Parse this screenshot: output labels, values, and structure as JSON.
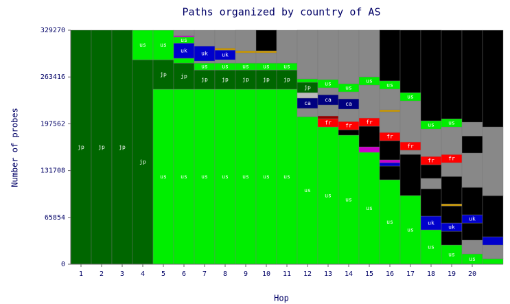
{
  "chart_data": {
    "type": "stacked-bar",
    "title": "Paths organized by country of AS",
    "y_label": "Number of probes",
    "x_label": "Hop",
    "ylim": [
      0,
      329270
    ],
    "yticks": [
      0,
      65854,
      131708,
      197562,
      263416,
      329270
    ],
    "categories": [
      "1",
      "2",
      "3",
      "4",
      "5",
      "6",
      "7",
      "8",
      "9",
      "10",
      "11",
      "12",
      "13",
      "14",
      "15",
      "16",
      "17",
      "18",
      "19",
      "20",
      null
    ],
    "stacks": [
      [
        {
          "value": 329270,
          "color": "#006600",
          "label": "jp"
        }
      ],
      [
        {
          "value": 329270,
          "color": "#006600",
          "label": "jp"
        }
      ],
      [
        {
          "value": 329270,
          "color": "#006600",
          "label": "jp"
        }
      ],
      [
        {
          "value": 287700,
          "color": "#006600",
          "label": "jp"
        },
        {
          "value": 41500,
          "color": "#00ee00",
          "label": "us"
        }
      ],
      [
        {
          "value": 246200,
          "color": "#00ee00",
          "label": "us"
        },
        {
          "value": 41500,
          "color": "#006600",
          "label": "jp"
        },
        {
          "value": 41500,
          "color": "#00ee00",
          "label": "us"
        }
      ],
      [
        {
          "value": 246200,
          "color": "#00ee00",
          "label": "us"
        },
        {
          "value": 36700,
          "color": "#006600",
          "label": "jp"
        },
        {
          "value": 6800,
          "color": "#00ee00"
        },
        {
          "value": 21200,
          "color": "#0000cc",
          "label": "uk"
        },
        {
          "value": 8700,
          "color": "#00ee00",
          "label": "us"
        },
        {
          "value": 1900,
          "color": "#cc00cc"
        },
        {
          "value": 7700,
          "color": "#888888"
        }
      ],
      [
        {
          "value": 246200,
          "color": "#00ee00",
          "label": "us"
        },
        {
          "value": 27000,
          "color": "#006600",
          "label": "jp"
        },
        {
          "value": 9700,
          "color": "#00ee00",
          "label": "us"
        },
        {
          "value": 2900,
          "color": "#888888"
        },
        {
          "value": 21200,
          "color": "#0000cc",
          "label": "uk"
        },
        {
          "value": 22200,
          "color": "#888888"
        }
      ],
      [
        {
          "value": 246200,
          "color": "#00ee00",
          "label": "us"
        },
        {
          "value": 27000,
          "color": "#006600",
          "label": "jp"
        },
        {
          "value": 9700,
          "color": "#00ee00",
          "label": "us"
        },
        {
          "value": 4800,
          "color": "#888888"
        },
        {
          "value": 13500,
          "color": "#0000cc",
          "label": "uk"
        },
        {
          "value": 2900,
          "color": "#cc9900"
        },
        {
          "value": 25100,
          "color": "#888888"
        }
      ],
      [
        {
          "value": 246200,
          "color": "#00ee00",
          "label": "us"
        },
        {
          "value": 27000,
          "color": "#006600",
          "label": "jp"
        },
        {
          "value": 9700,
          "color": "#00ee00",
          "label": "us"
        },
        {
          "value": 14500,
          "color": "#888888"
        },
        {
          "value": 2900,
          "color": "#cc9900"
        },
        {
          "value": 29000,
          "color": "#888888"
        }
      ],
      [
        {
          "value": 246200,
          "color": "#00ee00",
          "label": "us"
        },
        {
          "value": 27000,
          "color": "#006600",
          "label": "jp"
        },
        {
          "value": 9700,
          "color": "#00ee00",
          "label": "us"
        },
        {
          "value": 14500,
          "color": "#888888"
        },
        {
          "value": 2900,
          "color": "#cc9900"
        },
        {
          "value": 29000,
          "color": "#000000"
        }
      ],
      [
        {
          "value": 246200,
          "color": "#00ee00",
          "label": "us"
        },
        {
          "value": 27000,
          "color": "#006600",
          "label": "jp"
        },
        {
          "value": 9700,
          "color": "#00ee00",
          "label": "us"
        },
        {
          "value": 46300,
          "color": "#888888"
        }
      ],
      [
        {
          "value": 207600,
          "color": "#00ee00",
          "label": "us"
        },
        {
          "value": 11600,
          "color": "#888888"
        },
        {
          "value": 14500,
          "color": "#000080",
          "label": "ca"
        },
        {
          "value": 7700,
          "color": "#bbbbbb"
        },
        {
          "value": 14500,
          "color": "#006600",
          "label": "jp"
        },
        {
          "value": 4800,
          "color": "#00ee00"
        },
        {
          "value": 68600,
          "color": "#888888"
        }
      ],
      [
        {
          "value": 193100,
          "color": "#00ee00",
          "label": "us"
        },
        {
          "value": 11600,
          "color": "#ff0000",
          "label": "fr"
        },
        {
          "value": 3900,
          "color": "#990000"
        },
        {
          "value": 15400,
          "color": "#888888"
        },
        {
          "value": 14500,
          "color": "#000080",
          "label": "ca"
        },
        {
          "value": 9700,
          "color": "#888888"
        },
        {
          "value": 11600,
          "color": "#00ee00",
          "label": "us"
        },
        {
          "value": 69500,
          "color": "#888888"
        }
      ],
      [
        {
          "value": 181500,
          "color": "#00ee00",
          "label": "us"
        },
        {
          "value": 7700,
          "color": "#000000"
        },
        {
          "value": 11600,
          "color": "#ff0000",
          "label": "fr"
        },
        {
          "value": 17400,
          "color": "#888888"
        },
        {
          "value": 14500,
          "color": "#000080",
          "label": "ca"
        },
        {
          "value": 9700,
          "color": "#888888"
        },
        {
          "value": 11600,
          "color": "#00ee00",
          "label": "us"
        },
        {
          "value": 75300,
          "color": "#888888"
        }
      ],
      [
        {
          "value": 157400,
          "color": "#00ee00",
          "label": "us"
        },
        {
          "value": 7700,
          "color": "#cc00cc"
        },
        {
          "value": 29000,
          "color": "#000000"
        },
        {
          "value": 11600,
          "color": "#ff0000",
          "label": "fr"
        },
        {
          "value": 46300,
          "color": "#888888"
        },
        {
          "value": 11600,
          "color": "#00ee00",
          "label": "us"
        },
        {
          "value": 65700,
          "color": "#888888"
        }
      ],
      [
        {
          "value": 118800,
          "color": "#00ee00",
          "label": "us"
        },
        {
          "value": 19300,
          "color": "#000000"
        },
        {
          "value": 4800,
          "color": "#0000cc"
        },
        {
          "value": 3900,
          "color": "#cc00cc"
        },
        {
          "value": 27000,
          "color": "#000000"
        },
        {
          "value": 11600,
          "color": "#ff0000",
          "label": "fr"
        },
        {
          "value": 29000,
          "color": "#888888"
        },
        {
          "value": 2900,
          "color": "#cc9900"
        },
        {
          "value": 29000,
          "color": "#888888"
        },
        {
          "value": 11600,
          "color": "#00ee00",
          "label": "us"
        },
        {
          "value": 71500,
          "color": "#000000"
        }
      ],
      [
        {
          "value": 96600,
          "color": "#00ee00",
          "label": "us"
        },
        {
          "value": 57900,
          "color": "#000000"
        },
        {
          "value": 5800,
          "color": "#888888"
        },
        {
          "value": 11600,
          "color": "#ff0000",
          "label": "fr"
        },
        {
          "value": 57900,
          "color": "#888888"
        },
        {
          "value": 11600,
          "color": "#00ee00",
          "label": "us"
        },
        {
          "value": 87900,
          "color": "#000000"
        }
      ],
      [
        {
          "value": 48300,
          "color": "#00ee00",
          "label": "us"
        },
        {
          "value": 19300,
          "color": "#0000cc",
          "label": "uk"
        },
        {
          "value": 38600,
          "color": "#000000"
        },
        {
          "value": 14500,
          "color": "#888888"
        },
        {
          "value": 19300,
          "color": "#000000"
        },
        {
          "value": 11600,
          "color": "#ff0000",
          "label": "fr"
        },
        {
          "value": 38600,
          "color": "#888888"
        },
        {
          "value": 11600,
          "color": "#00ee00",
          "label": "us"
        },
        {
          "value": 127500,
          "color": "#000000"
        }
      ],
      [
        {
          "value": 27000,
          "color": "#00ee00",
          "label": "us"
        },
        {
          "value": 19300,
          "color": "#000000"
        },
        {
          "value": 11600,
          "color": "#0000cc",
          "label": "uk"
        },
        {
          "value": 24100,
          "color": "#000000"
        },
        {
          "value": 2900,
          "color": "#cc9900"
        },
        {
          "value": 38600,
          "color": "#000000"
        },
        {
          "value": 19300,
          "color": "#888888"
        },
        {
          "value": 11600,
          "color": "#ff0000",
          "label": "fr"
        },
        {
          "value": 38600,
          "color": "#888888"
        },
        {
          "value": 11600,
          "color": "#00ee00",
          "label": "us"
        },
        {
          "value": 124600,
          "color": "#000000"
        }
      ],
      [
        {
          "value": 14500,
          "color": "#00ee00",
          "label": "us"
        },
        {
          "value": 19300,
          "color": "#888888"
        },
        {
          "value": 24100,
          "color": "#000000"
        },
        {
          "value": 11600,
          "color": "#0000cc",
          "label": "uk"
        },
        {
          "value": 38600,
          "color": "#000000"
        },
        {
          "value": 48300,
          "color": "#888888"
        },
        {
          "value": 24100,
          "color": "#000000"
        },
        {
          "value": 19300,
          "color": "#888888"
        },
        {
          "value": 129400,
          "color": "#000000"
        }
      ],
      [
        {
          "value": 7700,
          "color": "#00ee00"
        },
        {
          "value": 19300,
          "color": "#888888"
        },
        {
          "value": 11600,
          "color": "#0000cc"
        },
        {
          "value": 57900,
          "color": "#000000"
        },
        {
          "value": 96600,
          "color": "#888888"
        },
        {
          "value": 136100,
          "color": "#000000"
        }
      ]
    ]
  }
}
